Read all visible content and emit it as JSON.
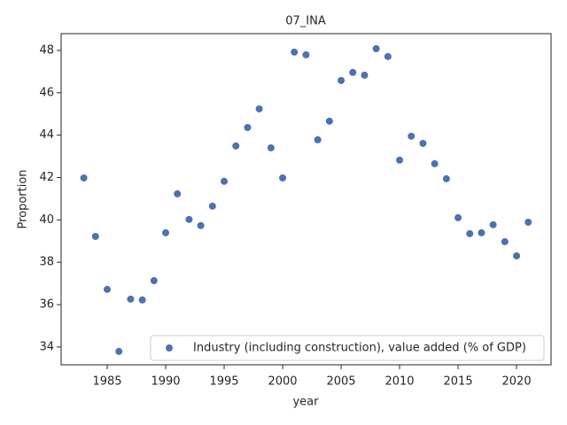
{
  "chart_data": {
    "type": "scatter",
    "title": "07_INA",
    "x_label": "year",
    "y_label": "Proportion",
    "series": [
      {
        "name": "Industry (including construction), value added (% of GDP)",
        "color": "#4c72b0",
        "x": [
          1983,
          1984,
          1985,
          1986,
          1987,
          1988,
          1989,
          1990,
          1991,
          1992,
          1993,
          1994,
          1995,
          1996,
          1997,
          1998,
          1999,
          2000,
          2001,
          2002,
          2003,
          2004,
          2005,
          2006,
          2007,
          2008,
          2009,
          2010,
          2011,
          2012,
          2013,
          2014,
          2015,
          2016,
          2017,
          2018,
          2019,
          2020,
          2021
        ],
        "values": [
          41.98,
          39.22,
          36.72,
          33.79,
          36.26,
          36.22,
          37.13,
          39.39,
          41.23,
          40.02,
          39.73,
          40.65,
          41.82,
          43.49,
          44.36,
          45.24,
          43.4,
          41.98,
          47.92,
          47.79,
          43.78,
          44.66,
          46.58,
          46.96,
          46.83,
          48.08,
          47.71,
          42.82,
          43.95,
          43.61,
          42.65,
          41.94,
          40.1,
          39.35,
          39.39,
          39.77,
          38.97,
          38.3,
          39.89
        ]
      }
    ],
    "xlim": [
      1981.06,
      2022.95
    ],
    "ylim": [
      33.16,
      48.79
    ],
    "xticks": [
      1985,
      1990,
      1995,
      2000,
      2005,
      2010,
      2015,
      2020
    ],
    "yticks": [
      34,
      36,
      38,
      40,
      42,
      44,
      46,
      48
    ],
    "grid": false,
    "legend": "lower right"
  }
}
